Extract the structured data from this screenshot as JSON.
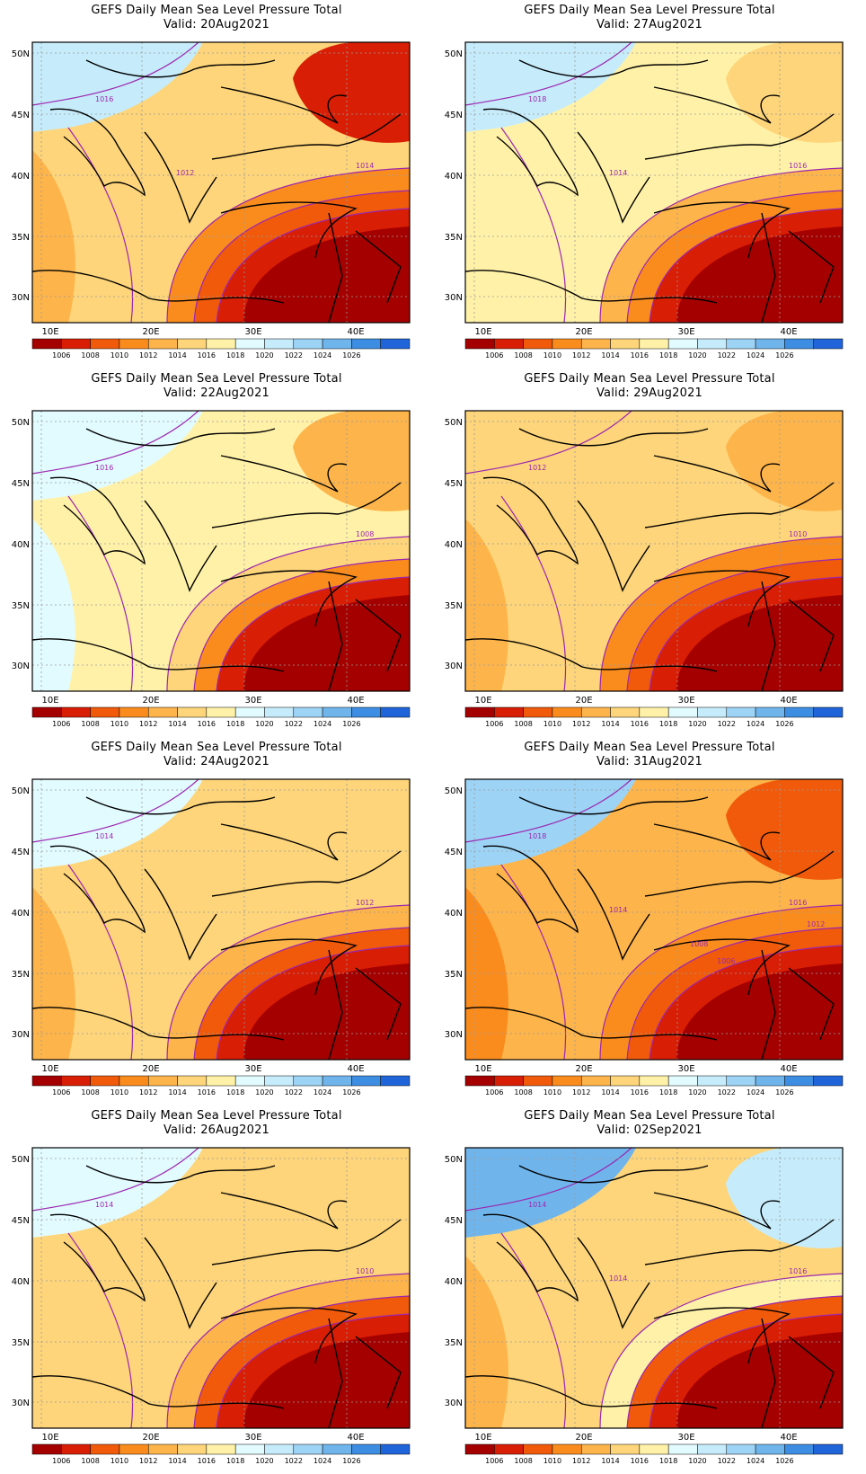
{
  "panels": [
    {
      "title": "GEFS Daily Mean Sea Level Pressure Total",
      "valid": "Valid: 20Aug2021",
      "contour_labels": [
        "1016",
        "1014",
        "1012"
      ],
      "dominant_low": "east",
      "high_corner": "northwest"
    },
    {
      "title": "GEFS Daily Mean Sea Level Pressure Total",
      "valid": "Valid: 27Aug2021",
      "contour_labels": [
        "1018",
        "1016",
        "1014"
      ],
      "dominant_low": "southeast",
      "high_corner": "northwest"
    },
    {
      "title": "GEFS Daily Mean Sea Level Pressure Total",
      "valid": "Valid: 22Aug2021",
      "contour_labels": [
        "1016",
        "1008"
      ],
      "dominant_low": "southeast",
      "high_corner": "west"
    },
    {
      "title": "GEFS Daily Mean Sea Level Pressure Total",
      "valid": "Valid: 29Aug2021",
      "contour_labels": [
        "1012",
        "1010"
      ],
      "dominant_low": "southeast",
      "high_corner": "none"
    },
    {
      "title": "GEFS Daily Mean Sea Level Pressure Total",
      "valid": "Valid: 24Aug2021",
      "contour_labels": [
        "1014",
        "1012"
      ],
      "dominant_low": "southeast",
      "high_corner": "northwest"
    },
    {
      "title": "GEFS Daily Mean Sea Level Pressure Total",
      "valid": "Valid: 31Aug2021",
      "contour_labels": [
        "1018",
        "1016",
        "1014",
        "1012",
        "1008",
        "1006"
      ],
      "dominant_low": "southeast",
      "high_corner": "northwest"
    },
    {
      "title": "GEFS Daily Mean Sea Level Pressure Total",
      "valid": "Valid: 26Aug2021",
      "contour_labels": [
        "1014",
        "1010"
      ],
      "dominant_low": "southeast",
      "high_corner": "northwest"
    },
    {
      "title": "GEFS Daily Mean Sea Level Pressure Total",
      "valid": "Valid: 02Sep2021",
      "contour_labels": [
        "1014",
        "1016",
        "1014"
      ],
      "dominant_low": "southeast",
      "high_corner": "north"
    }
  ],
  "axes": {
    "lat_labels": [
      "50N",
      "45N",
      "40N",
      "35N",
      "30N"
    ],
    "lon_labels": [
      "10E",
      "20E",
      "30E",
      "40E"
    ]
  },
  "colorbar": {
    "levels": [
      "1006",
      "1008",
      "1010",
      "1012",
      "1014",
      "1016",
      "1018",
      "1020",
      "1022",
      "1024",
      "1026"
    ],
    "colors": [
      "#a50000",
      "#d81e05",
      "#f05a0a",
      "#fa8c1e",
      "#fdb44a",
      "#fed57a",
      "#fff2a8",
      "#e2fbff",
      "#c6ecfb",
      "#9dd3f5",
      "#6fb5ec",
      "#3d8ee3",
      "#1f64d9"
    ]
  },
  "colors": {
    "contour": "#9c27b0",
    "coast": "#000000",
    "grid": "#9a9a9a"
  }
}
